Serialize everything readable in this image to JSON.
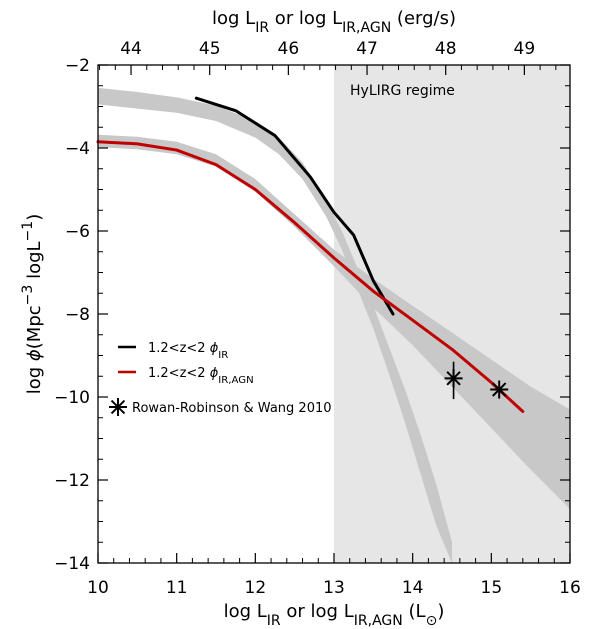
{
  "chart_data": {
    "type": "line",
    "xlabel": "log L_IR or log L_IR,AGN (L_⊙)",
    "x2label": "log L_IR or log L_IR,AGN (erg/s)",
    "ylabel": "log φ(Mpc^-3 logL^-1)",
    "xlim": [
      10,
      16
    ],
    "ylim": [
      -14,
      -2
    ],
    "x_ticks": [
      10,
      11,
      12,
      13,
      14,
      15,
      16
    ],
    "y_ticks": [
      -2,
      -4,
      -6,
      -8,
      -10,
      -12,
      -14
    ],
    "x2_ticks": [
      44,
      45,
      46,
      47,
      48,
      49
    ],
    "x2_offset": 33.58,
    "region": {
      "label": "HyLIRG regime",
      "x_from": 13,
      "x_to": 16,
      "color": "#e6e6e6"
    },
    "bands": [
      {
        "color": "#c8c8c8",
        "x": [
          10.0,
          10.5,
          11.0,
          11.5,
          12.0,
          12.3,
          12.6,
          12.9,
          13.1,
          13.3,
          13.5,
          13.7,
          13.9,
          14.1,
          14.3,
          14.5
        ],
        "upper": [
          -2.55,
          -2.65,
          -2.78,
          -2.98,
          -3.35,
          -3.75,
          -4.35,
          -5.25,
          -6.0,
          -6.9,
          -7.8,
          -8.8,
          -9.8,
          -10.9,
          -12.1,
          -13.5
        ],
        "lower": [
          -2.95,
          -3.05,
          -3.15,
          -3.35,
          -3.75,
          -4.15,
          -4.75,
          -5.65,
          -6.45,
          -7.4,
          -8.35,
          -9.45,
          -10.6,
          -11.85,
          -13.1,
          -14.0
        ]
      },
      {
        "color": "#c8c8c8",
        "x": [
          10.0,
          10.5,
          11.0,
          11.5,
          12.0,
          12.5,
          13.0,
          13.5,
          14.0,
          14.5,
          15.0,
          15.5,
          16.0
        ],
        "upper": [
          -3.68,
          -3.73,
          -3.85,
          -4.15,
          -4.75,
          -5.6,
          -6.45,
          -7.15,
          -7.8,
          -8.45,
          -9.1,
          -9.75,
          -10.3
        ],
        "lower": [
          -3.98,
          -4.03,
          -4.15,
          -4.45,
          -5.05,
          -5.9,
          -6.85,
          -7.85,
          -8.75,
          -9.75,
          -10.75,
          -11.75,
          -12.7
        ]
      }
    ],
    "series": [
      {
        "name": "1.2<z<2 φIR",
        "color": "#000000",
        "x": [
          11.25,
          11.75,
          12.25,
          12.7,
          13.0,
          13.25,
          13.5,
          13.75
        ],
        "y": [
          -2.8,
          -3.1,
          -3.7,
          -4.7,
          -5.55,
          -6.1,
          -7.2,
          -8.0
        ]
      },
      {
        "name": "1.2<z<2 φIR,AGN",
        "color": "#c00000",
        "x": [
          10.0,
          10.5,
          11.0,
          11.5,
          12.0,
          12.5,
          13.0,
          13.5,
          14.0,
          14.5,
          15.0,
          15.4
        ],
        "y": [
          -3.85,
          -3.9,
          -4.05,
          -4.4,
          -5.0,
          -5.8,
          -6.65,
          -7.45,
          -8.15,
          -8.85,
          -9.65,
          -10.35
        ]
      }
    ],
    "points": [
      {
        "name": "Rowan-Robinson & Wang 2010",
        "x": 14.52,
        "y": -9.55,
        "err_low": 0.5,
        "err_high": 0.4
      },
      {
        "name": "Rowan-Robinson & Wang 2010",
        "x": 15.1,
        "y": -9.82,
        "err_low": 0.15,
        "err_high": 0.1
      }
    ],
    "legend": {
      "placement": "left-middle",
      "entries": [
        {
          "type": "line",
          "color": "#000000",
          "label": "1.2<z<2 φIR"
        },
        {
          "type": "line",
          "color": "#c00000",
          "label": "1.2<z<2 φIR,AGN"
        },
        {
          "type": "marker",
          "label": "Rowan-Robinson & Wang 2010"
        }
      ]
    },
    "grid": false
  }
}
